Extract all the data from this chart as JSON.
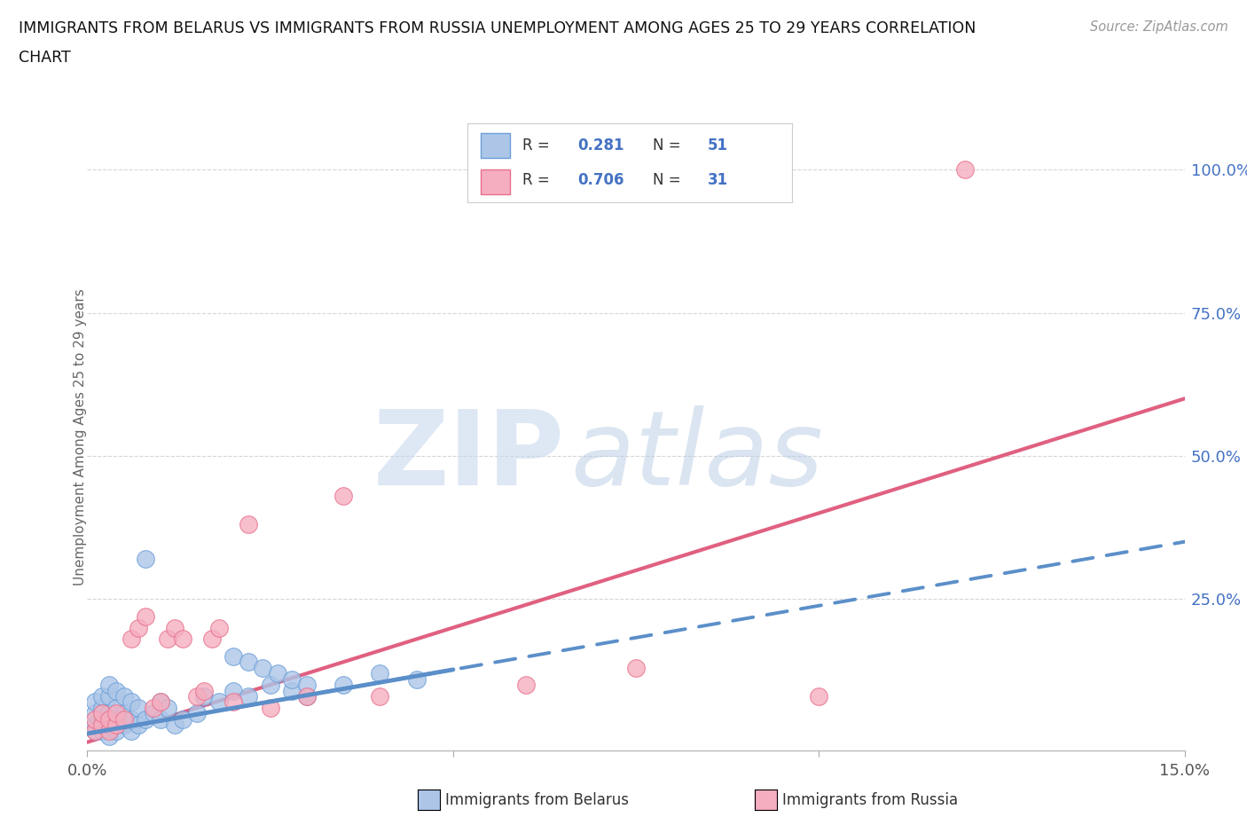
{
  "title_line1": "IMMIGRANTS FROM BELARUS VS IMMIGRANTS FROM RUSSIA UNEMPLOYMENT AMONG AGES 25 TO 29 YEARS CORRELATION",
  "title_line2": "CHART",
  "source": "Source: ZipAtlas.com",
  "ylabel": "Unemployment Among Ages 25 to 29 years",
  "xlim": [
    0.0,
    0.15
  ],
  "ylim": [
    -0.015,
    1.08
  ],
  "xtick_positions": [
    0.0,
    0.05,
    0.1,
    0.15
  ],
  "xtick_labels": [
    "0.0%",
    "",
    "",
    "15.0%"
  ],
  "ytick_vals": [
    0.25,
    0.5,
    0.75,
    1.0
  ],
  "ytick_labels": [
    "25.0%",
    "50.0%",
    "75.0%",
    "100.0%"
  ],
  "legend_r_belarus": "0.281",
  "legend_n_belarus": "51",
  "legend_r_russia": "0.706",
  "legend_n_russia": "31",
  "legend_label_belarus": "Immigrants from Belarus",
  "legend_label_russia": "Immigrants from Russia",
  "color_belarus_fill": "#adc6e8",
  "color_belarus_edge": "#6a9fd8",
  "color_russia_fill": "#f5aec0",
  "color_russia_edge": "#e8708a",
  "color_belarus_line": "#5b8fc9",
  "color_russia_line": "#e06080",
  "color_value_blue": "#4472c4",
  "background_color": "#ffffff",
  "grid_color": "#cccccc",
  "watermark_zip_color": "#c8d8ee",
  "watermark_atlas_color": "#b8cce4",
  "belarus_x": [
    0.001,
    0.001,
    0.001,
    0.001,
    0.002,
    0.002,
    0.002,
    0.002,
    0.002,
    0.003,
    0.003,
    0.003,
    0.003,
    0.003,
    0.004,
    0.004,
    0.004,
    0.004,
    0.005,
    0.005,
    0.005,
    0.006,
    0.006,
    0.006,
    0.007,
    0.007,
    0.008,
    0.008,
    0.009,
    0.01,
    0.01,
    0.011,
    0.012,
    0.013,
    0.015,
    0.016,
    0.018,
    0.02,
    0.022,
    0.025,
    0.028,
    0.03,
    0.035,
    0.04,
    0.045,
    0.02,
    0.022,
    0.024,
    0.026,
    0.028,
    0.03
  ],
  "belarus_y": [
    0.02,
    0.03,
    0.05,
    0.07,
    0.02,
    0.03,
    0.04,
    0.06,
    0.08,
    0.01,
    0.03,
    0.05,
    0.08,
    0.1,
    0.02,
    0.04,
    0.06,
    0.09,
    0.03,
    0.05,
    0.08,
    0.02,
    0.04,
    0.07,
    0.03,
    0.06,
    0.04,
    0.32,
    0.05,
    0.04,
    0.07,
    0.06,
    0.03,
    0.04,
    0.05,
    0.08,
    0.07,
    0.09,
    0.08,
    0.1,
    0.09,
    0.08,
    0.1,
    0.12,
    0.11,
    0.15,
    0.14,
    0.13,
    0.12,
    0.11,
    0.1
  ],
  "russia_x": [
    0.001,
    0.001,
    0.002,
    0.002,
    0.003,
    0.003,
    0.004,
    0.004,
    0.005,
    0.006,
    0.007,
    0.008,
    0.009,
    0.01,
    0.011,
    0.012,
    0.013,
    0.015,
    0.016,
    0.017,
    0.018,
    0.02,
    0.022,
    0.025,
    0.03,
    0.035,
    0.04,
    0.06,
    0.075,
    0.1,
    0.12
  ],
  "russia_y": [
    0.02,
    0.04,
    0.03,
    0.05,
    0.02,
    0.04,
    0.03,
    0.05,
    0.04,
    0.18,
    0.2,
    0.22,
    0.06,
    0.07,
    0.18,
    0.2,
    0.18,
    0.08,
    0.09,
    0.18,
    0.2,
    0.07,
    0.38,
    0.06,
    0.08,
    0.43,
    0.08,
    0.1,
    0.13,
    0.08,
    1.0
  ],
  "russia_trendline_x": [
    0.0,
    0.15
  ],
  "russia_trendline_y": [
    0.0,
    0.6
  ],
  "belarus_trendline_x": [
    0.0,
    0.15
  ],
  "belarus_trendline_y": [
    0.015,
    0.35
  ]
}
